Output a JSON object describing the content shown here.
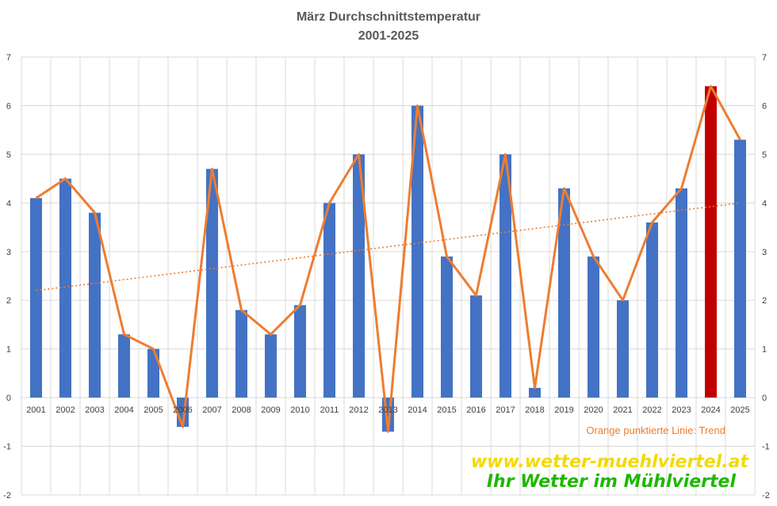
{
  "chart_data": {
    "type": "bar",
    "title_line1": "März Durchschnittstemperatur",
    "title_line2": "2001-2025",
    "categories": [
      "2001",
      "2002",
      "2003",
      "2004",
      "2005",
      "2006",
      "2007",
      "2008",
      "2009",
      "2010",
      "2011",
      "2012",
      "2013",
      "2014",
      "2015",
      "2016",
      "2017",
      "2018",
      "2019",
      "2020",
      "2021",
      "2022",
      "2023",
      "2024",
      "2025"
    ],
    "values": [
      4.1,
      4.5,
      3.8,
      1.3,
      1.0,
      -0.6,
      4.7,
      1.8,
      1.3,
      1.9,
      4.0,
      5.0,
      -0.7,
      6.0,
      2.9,
      2.1,
      5.0,
      0.2,
      4.3,
      2.9,
      2.0,
      3.6,
      4.3,
      6.4,
      5.3
    ],
    "highlight_category": "2024",
    "ylim": [
      -2,
      7
    ],
    "yticks": [
      -2,
      -1,
      0,
      1,
      2,
      3,
      4,
      5,
      6,
      7
    ],
    "grid": true,
    "trend": {
      "start": 2.2,
      "end": 4.0
    },
    "trend_note": "Orange punktierte Linie: Trend",
    "colors": {
      "bar": "#4472C4",
      "highlight": "#C00000",
      "line": "#ED7D31",
      "grid": "#D9D9D9"
    }
  },
  "watermark": {
    "url": "www.wetter-muehlviertel.at",
    "slogan": "Ihr Wetter im Mühlviertel"
  }
}
